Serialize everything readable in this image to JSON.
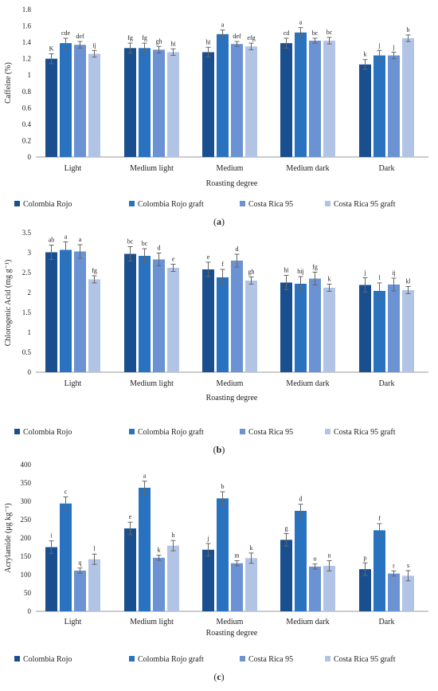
{
  "colors": [
    "#1a4f8f",
    "#2872bf",
    "#6b92d3",
    "#b2c4e6"
  ],
  "chart_data": [
    {
      "type": "bar",
      "panel_label": "a",
      "categories": [
        "Light",
        "Medium light",
        "Medium",
        "Medium dark",
        "Dark"
      ],
      "series": [
        {
          "name": "Colombia Rojo",
          "values": [
            1.2,
            1.33,
            1.28,
            1.39,
            1.13
          ],
          "errors": [
            0.06,
            0.06,
            0.06,
            0.06,
            0.06
          ],
          "letters": [
            "K",
            "fg",
            "hi",
            "cd",
            "k"
          ]
        },
        {
          "name": "Colombia Rojo graft",
          "values": [
            1.39,
            1.33,
            1.5,
            1.52,
            1.24
          ],
          "errors": [
            0.06,
            0.06,
            0.05,
            0.06,
            0.06
          ],
          "letters": [
            "cde",
            "fg",
            "a",
            "a",
            "j"
          ]
        },
        {
          "name": "Costa Rica 95",
          "values": [
            1.37,
            1.31,
            1.38,
            1.42,
            1.24
          ],
          "errors": [
            0.04,
            0.04,
            0.03,
            0.03,
            0.04
          ],
          "letters": [
            "def",
            "gh",
            "def",
            "bc",
            "j"
          ]
        },
        {
          "name": "Costa Rica 95 graft",
          "values": [
            1.26,
            1.28,
            1.35,
            1.42,
            1.45
          ],
          "errors": [
            0.04,
            0.04,
            0.04,
            0.04,
            0.04
          ],
          "letters": [
            "ij",
            "hi",
            "efg",
            "bc",
            "b"
          ]
        }
      ],
      "xlabel": "Roasting degree",
      "ylabel": "Caffeine (%)",
      "ylim": [
        0,
        1.8
      ],
      "yticks": [
        "0",
        "0.2",
        "0.4",
        "0.6",
        "0.8",
        "1",
        "1.2",
        "1.4",
        "1.6",
        "1.8"
      ],
      "grid": false,
      "legend_position": "bottom"
    },
    {
      "type": "bar",
      "panel_label": "b",
      "categories": [
        "Light",
        "Medium light",
        "Medium",
        "Medium dark",
        "Dark"
      ],
      "series": [
        {
          "name": "Colombia Rojo",
          "values": [
            3.01,
            2.97,
            2.58,
            2.25,
            2.19
          ],
          "errors": [
            0.18,
            0.18,
            0.18,
            0.18,
            0.18
          ],
          "letters": [
            "ab",
            "bc",
            "e",
            "hi",
            "j"
          ]
        },
        {
          "name": "Colombia Rojo graft",
          "values": [
            3.07,
            2.92,
            2.38,
            2.22,
            2.04
          ],
          "errors": [
            0.2,
            0.18,
            0.2,
            0.18,
            0.2
          ],
          "letters": [
            "a",
            "bc",
            "f",
            "hij",
            "l"
          ]
        },
        {
          "name": "Costa Rica 95",
          "values": [
            3.03,
            2.83,
            2.8,
            2.35,
            2.2
          ],
          "errors": [
            0.17,
            0.16,
            0.16,
            0.16,
            0.16
          ],
          "letters": [
            "a",
            "d",
            "d",
            "fg",
            "ij"
          ]
        },
        {
          "name": "Costa Rica 95 graft",
          "values": [
            2.33,
            2.62,
            2.3,
            2.12,
            2.06
          ],
          "errors": [
            0.09,
            0.09,
            0.09,
            0.09,
            0.09
          ],
          "letters": [
            "fg",
            "e",
            "gh",
            "k",
            "kl"
          ]
        }
      ],
      "xlabel": "Roasting degree",
      "ylabel": "Chlorogenic Acid (mg g⁻¹)",
      "ylim": [
        0,
        3.5
      ],
      "yticks": [
        "0",
        "0.5",
        "1",
        "1.5",
        "2",
        "2.5",
        "3",
        "3.5"
      ],
      "grid": false,
      "legend_position": "bottom"
    },
    {
      "type": "bar",
      "panel_label": "c",
      "categories": [
        "Light",
        "Medium light",
        "Medium",
        "Medium dark",
        "Dark"
      ],
      "series": [
        {
          "name": "Colombia Rojo",
          "values": [
            175,
            226,
            168,
            195,
            115
          ],
          "errors": [
            17,
            17,
            17,
            17,
            17
          ],
          "letters": [
            "i",
            "e",
            "j",
            "g",
            "p"
          ]
        },
        {
          "name": "Colombia Rojo graft",
          "values": [
            294,
            337,
            308,
            274,
            221
          ],
          "errors": [
            18,
            18,
            18,
            18,
            18
          ],
          "letters": [
            "c",
            "a",
            "b",
            "d",
            "f"
          ]
        },
        {
          "name": "Costa Rica 95",
          "values": [
            111,
            146,
            131,
            122,
            103
          ],
          "errors": [
            7,
            7,
            7,
            7,
            7
          ],
          "letters": [
            "q",
            "k",
            "m",
            "o",
            "r"
          ]
        },
        {
          "name": "Costa Rica 95 graft",
          "values": [
            142,
            179,
            145,
            124,
            97
          ],
          "errors": [
            14,
            14,
            14,
            14,
            14
          ],
          "letters": [
            "l",
            "h",
            "k",
            "n",
            "s"
          ]
        }
      ],
      "xlabel": "Roasting degree",
      "ylabel": "Acrylamide (μg kg⁻¹)",
      "ylim": [
        0,
        400
      ],
      "yticks": [
        "0",
        "50",
        "100",
        "150",
        "200",
        "250",
        "300",
        "350",
        "400"
      ],
      "grid": false,
      "legend_position": "bottom"
    }
  ]
}
